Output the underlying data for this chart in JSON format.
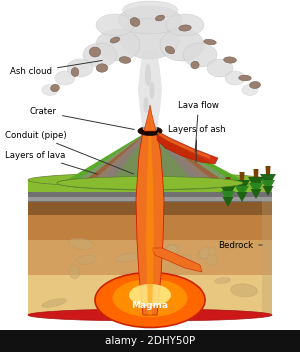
{
  "title": "",
  "background_color": "#ffffff",
  "labels": {
    "ash_cloud": "Ash cloud",
    "crater": "Crater",
    "lava_flow": "Lava flow",
    "conduit": "Conduit (pipe)",
    "layers_of_ash": "Layers of ash",
    "layers_of_lava": "Layers of lava",
    "bedrock": "Bedrock",
    "magma": "Magma",
    "watermark": "alamy - 2DHY50P"
  },
  "colors": {
    "sky": "#ffffff",
    "ash_cloud_fill": "#dcdcdc",
    "ash_cloud_edge": "#c0c0c0",
    "lava_orange": "#f07020",
    "lava_red": "#cc2200",
    "lava_bright": "#ff9900",
    "lava_yellow": "#ffdd44",
    "magma_glow": "#ff6600",
    "magma_center": "#ffee88",
    "volcano_green": "#5aaa28",
    "vol_ash_grey": "#909090",
    "vol_lava_brown": "#b04020",
    "vol_inner_grey": "#808080",
    "ground_green": "#88bb30",
    "ground_grey_dark": "#707070",
    "ground_grey_light": "#999999",
    "ground_brown_dark": "#8B5A2B",
    "ground_brown_mid": "#c08040",
    "ground_tan": "#d4a060",
    "ground_sandy": "#e8c880",
    "bedrock_red": "#cc1818",
    "rock_brown": "#9a8070",
    "rock_edge": "#7a6050",
    "tree_dark": "#1a6010",
    "tree_mid": "#2a8820",
    "tree_trunk": "#7B3F00",
    "text_color": "#000000",
    "watermark_bar": "#111111",
    "watermark_text": "#ffffff",
    "cloud_smoke": "#c8c8c8",
    "shadow": "#a0a0a0"
  },
  "figsize": [
    3.0,
    3.52
  ],
  "dpi": 100
}
